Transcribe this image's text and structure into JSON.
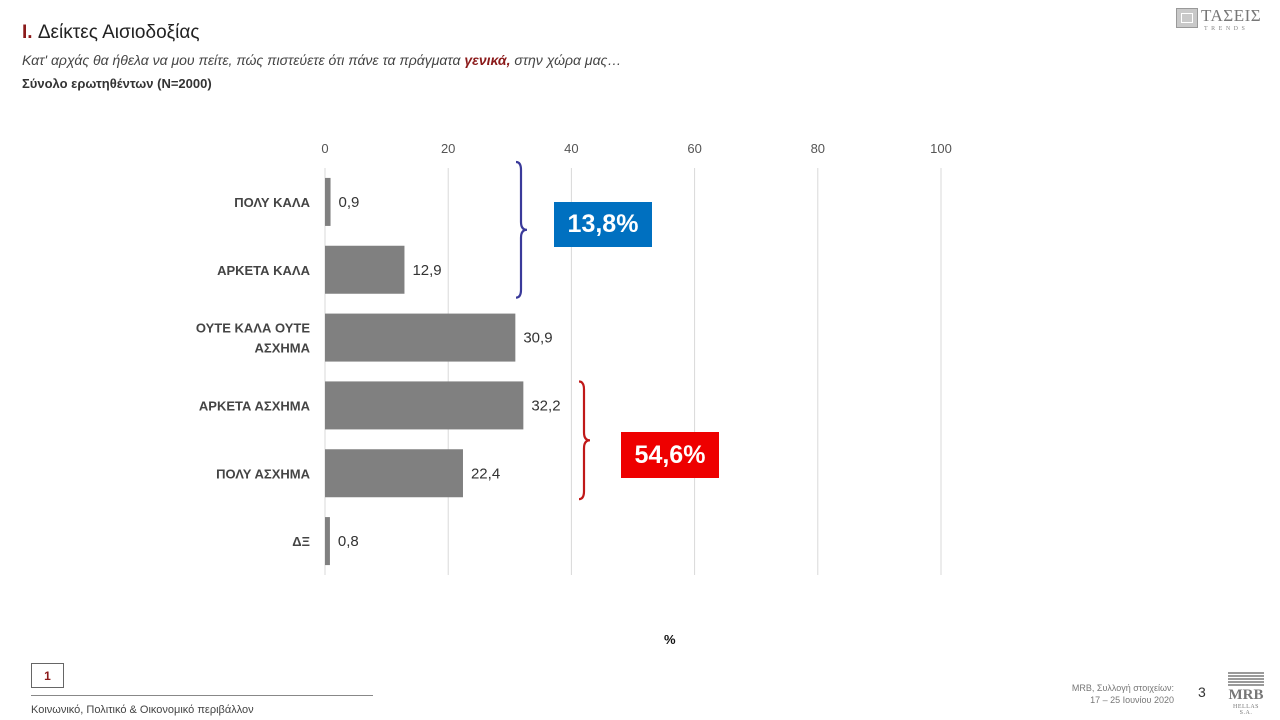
{
  "header": {
    "title_num": "I.",
    "title_text": "Δείκτες Αισιοδοξίας",
    "subtitle_before": "Κατ' αρχάς θα ήθελα να μου πείτε, πώς πιστεύετε ότι πάνε τα πράγματα ",
    "subtitle_em": "γενικά,",
    "subtitle_after": " στην χώρα μας…",
    "base": "Σύνολο ερωτηθέντων (N=2000)"
  },
  "logo_top": {
    "name": "ΤΑΣΕΙΣ",
    "sub": "TRENDS"
  },
  "chart_data": {
    "type": "bar",
    "orientation": "horizontal",
    "categories": [
      "ΠΟΛΥ ΚΑΛΑ",
      "ΑΡΚΕΤΑ ΚΑΛΑ",
      "ΟΥΤΕ ΚΑΛΑ ΟΥΤΕ ΑΣΧΗΜΑ",
      "ΑΡΚΕΤΑ ΑΣΧΗΜΑ",
      "ΠΟΛΥ ΑΣΧΗΜΑ",
      "ΔΞ"
    ],
    "category_lines": [
      [
        "ΠΟΛΥ ΚΑΛΑ"
      ],
      [
        "ΑΡΚΕΤΑ ΚΑΛΑ"
      ],
      [
        "ΟΥΤΕ ΚΑΛΑ ΟΥΤΕ",
        "ΑΣΧΗΜΑ"
      ],
      [
        "ΑΡΚΕΤΑ ΑΣΧΗΜΑ"
      ],
      [
        "ΠΟΛΥ ΑΣΧΗΜΑ"
      ],
      [
        "ΔΞ"
      ]
    ],
    "values": [
      0.9,
      12.9,
      30.9,
      32.2,
      22.4,
      0.8
    ],
    "value_labels": [
      "0,9",
      "12,9",
      "30,9",
      "32,2",
      "22,4",
      "0,8"
    ],
    "xlim": [
      0,
      100
    ],
    "xticks": [
      0,
      20,
      40,
      60,
      80,
      100
    ],
    "xlabel": "%",
    "axis_position": "top",
    "grid": true,
    "bar_color": "#808080",
    "groups": [
      {
        "label": "13,8%",
        "from": 0,
        "to": 1,
        "color": "#0070c0",
        "brace_color": "#3a3a9a"
      },
      {
        "label": "54,6%",
        "from": 3,
        "to": 4,
        "color": "#ee0000",
        "brace_color": "#c01818"
      }
    ]
  },
  "footer": {
    "page_badge": "1",
    "section": "Κοινωνικό, Πολιτικό & Οικονομικό περιβάλλον",
    "source_line1": "MRB, Συλλογή στοιχείων:",
    "source_line2": "17 – 25 Ιουνίου 2020",
    "page_number": "3",
    "logo_text": "MRB",
    "logo_sub": "HELLAS S.A."
  }
}
